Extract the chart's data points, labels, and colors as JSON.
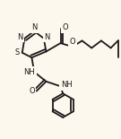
{
  "background_color": "#fdf8ee",
  "line_color": "#1a1a1a",
  "line_width": 1.3,
  "figsize": [
    1.35,
    1.55
  ],
  "dpi": 100,
  "xlim": [
    0.0,
    1.0
  ],
  "ylim": [
    0.0,
    1.0
  ]
}
